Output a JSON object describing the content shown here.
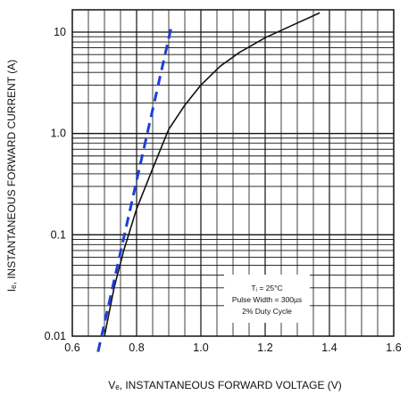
{
  "chart_data": {
    "type": "line",
    "title": "",
    "xlabel": "Vₑ, INSTANTANEOUS FORWARD VOLTAGE (V)",
    "ylabel": "Iₑ, INSTANTANEOUS FORWARD CURRENT (A)",
    "x_scale": "linear",
    "y_scale": "log",
    "xlim": [
      0.6,
      1.6
    ],
    "ylim": [
      0.01,
      20
    ],
    "x_ticks": [
      "0.6",
      "0.8",
      "1.0",
      "1.2",
      "1.4",
      "1.6"
    ],
    "x_tick_values": [
      0.6,
      0.8,
      1.0,
      1.2,
      1.4,
      1.6
    ],
    "y_ticks": [
      "0.01",
      "0.1",
      "1.0",
      "10"
    ],
    "y_tick_values": [
      0.01,
      0.1,
      1.0,
      10
    ],
    "grid": true,
    "series": [
      {
        "style": "solid",
        "color": "#111111",
        "x": [
          0.7,
          0.73,
          0.76,
          0.8,
          0.85,
          0.9,
          0.95,
          1.0,
          1.06,
          1.12,
          1.2,
          1.3,
          1.37
        ],
        "y": [
          0.01,
          0.03,
          0.07,
          0.18,
          0.45,
          1.1,
          1.9,
          3.0,
          4.6,
          6.3,
          8.8,
          12.3,
          15.5
        ]
      },
      {
        "style": "dashed",
        "color": "#1f3fd6",
        "x": [
          0.68,
          0.91
        ],
        "y": [
          0.007,
          12
        ]
      }
    ],
    "annotation": {
      "lines": [
        "Tⱼ = 25°C",
        "Pulse Width = 300µs",
        "2% Duty Cycle"
      ]
    }
  }
}
